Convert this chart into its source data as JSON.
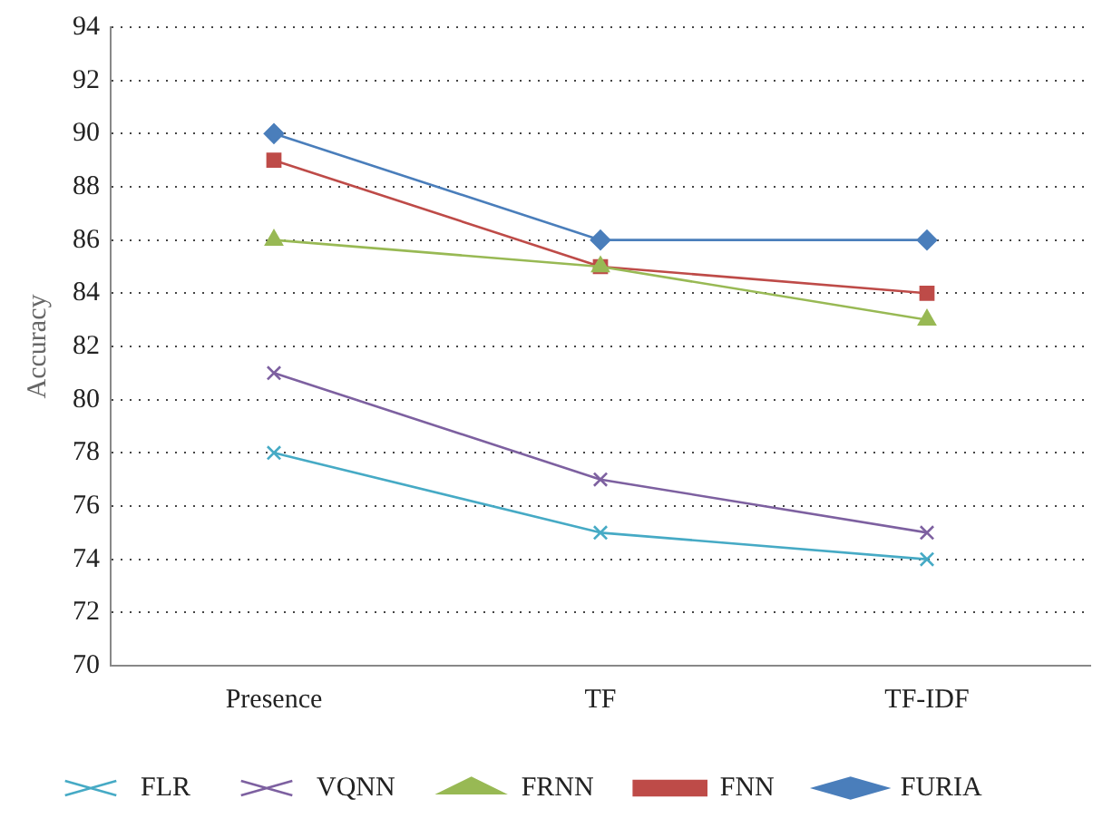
{
  "chart_data": {
    "type": "line",
    "ylabel": "Accuracy",
    "categories": [
      "Presence",
      "TF",
      "TF-IDF"
    ],
    "series": [
      {
        "name": "FURIA",
        "color": "#4a7ebb",
        "marker": "diamond",
        "values": [
          90,
          86,
          86
        ]
      },
      {
        "name": "FNN",
        "color": "#be4b48",
        "marker": "square",
        "values": [
          89,
          85,
          84
        ]
      },
      {
        "name": "FRNN",
        "color": "#98b954",
        "marker": "triangle",
        "values": [
          86,
          85,
          83
        ]
      },
      {
        "name": "VQNN",
        "color": "#7d60a0",
        "marker": "cross",
        "values": [
          81,
          77,
          75
        ]
      },
      {
        "name": "FLR",
        "color": "#46aac5",
        "marker": "cross",
        "values": [
          78,
          75,
          74
        ]
      }
    ],
    "ylim": [
      70,
      94
    ],
    "yticks": [
      70,
      72,
      74,
      76,
      78,
      80,
      82,
      84,
      86,
      88,
      90,
      92,
      94
    ],
    "grid": "y",
    "legend": "bottom",
    "line_style": "solid"
  }
}
